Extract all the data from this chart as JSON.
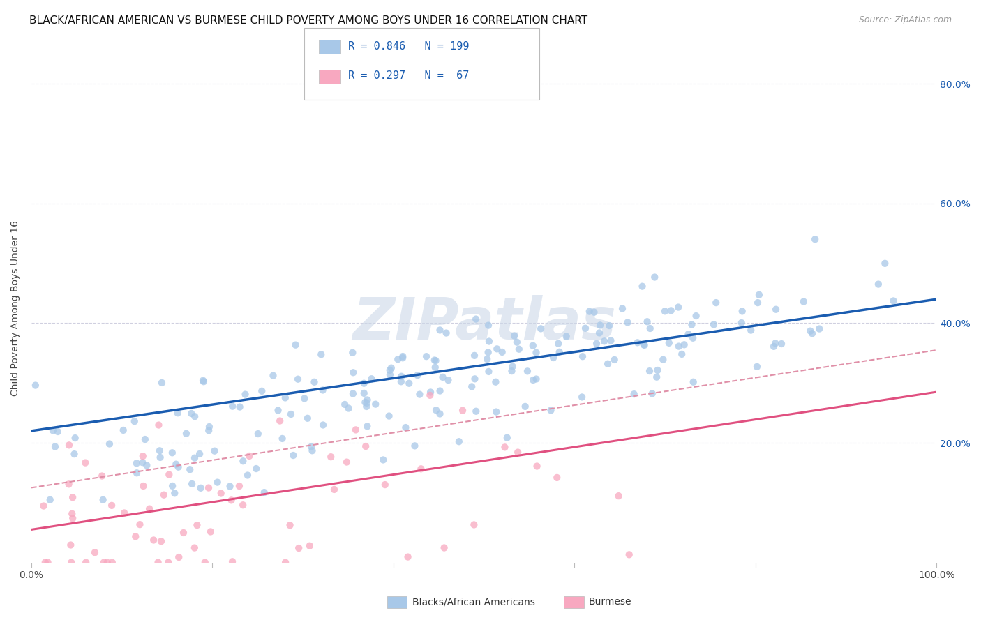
{
  "title": "BLACK/AFRICAN AMERICAN VS BURMESE CHILD POVERTY AMONG BOYS UNDER 16 CORRELATION CHART",
  "source": "Source: ZipAtlas.com",
  "ylabel": "Child Poverty Among Boys Under 16",
  "watermark": "ZIPatlas",
  "legend_entries": [
    {
      "label": "Blacks/African Americans",
      "color": "#a8c8e8",
      "R": 0.846,
      "N": 199
    },
    {
      "label": "Burmese",
      "color": "#f8a8c0",
      "R": 0.297,
      "N": 67
    }
  ],
  "blue_line_color": "#1a5cb0",
  "pink_line_color": "#e05080",
  "pink_dash_color": "#e090a8",
  "grid_color": "#d0d0e0",
  "background_color": "#ffffff",
  "title_fontsize": 11,
  "axis_label_fontsize": 10,
  "tick_fontsize": 10,
  "source_fontsize": 9,
  "watermark_color": "#ccd8e8",
  "watermark_fontsize": 60,
  "ytick_color": "#1a5cb0",
  "xlim": [
    0,
    1.0
  ],
  "ylim": [
    0,
    0.85
  ],
  "blue_R": 0.846,
  "blue_N": 199,
  "pink_R": 0.297,
  "pink_N": 67,
  "blue_line_start": 0.22,
  "blue_line_end": 0.44,
  "pink_line_start": 0.055,
  "pink_line_end": 0.285
}
